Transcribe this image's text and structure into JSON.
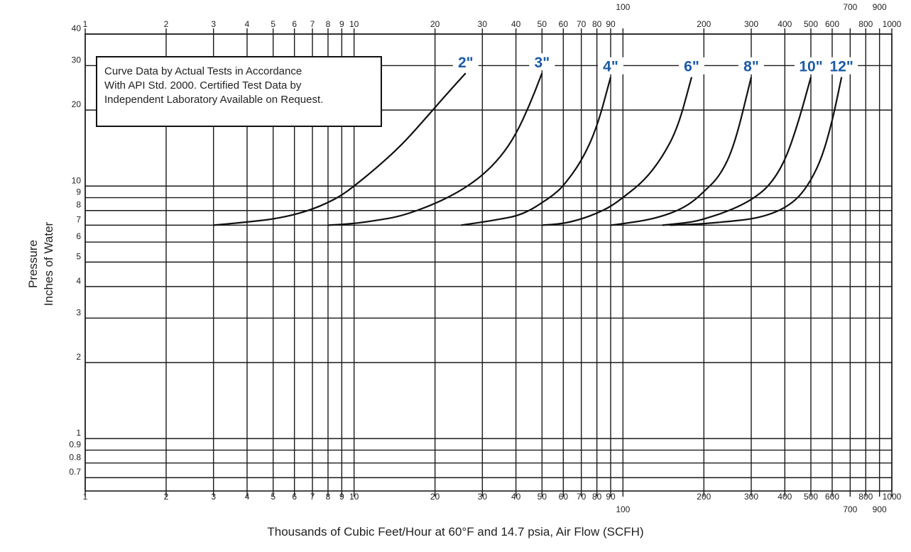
{
  "chart_data": {
    "type": "line",
    "title": "",
    "xlabel": "Thousands of Cubic Feet/Hour at 60°F and 14.7 psia, Air Flow (SCFH)",
    "ylabel": [
      "Pressure",
      "Inches of Water"
    ],
    "xscale": "log",
    "yscale": "log",
    "xlim": [
      1,
      1000
    ],
    "ylim": [
      0.62,
      40
    ],
    "grid": true,
    "legend": "none",
    "x_ticks": [
      {
        "value": 1,
        "label": "1"
      },
      {
        "value": 2,
        "label": "2"
      },
      {
        "value": 3,
        "label": "3"
      },
      {
        "value": 4,
        "label": "4"
      },
      {
        "value": 5,
        "label": "5"
      },
      {
        "value": 6,
        "label": "6"
      },
      {
        "value": 7,
        "label": "7"
      },
      {
        "value": 8,
        "label": "8"
      },
      {
        "value": 9,
        "label": "9"
      },
      {
        "value": 10,
        "label": "10"
      },
      {
        "value": 20,
        "label": "20"
      },
      {
        "value": 30,
        "label": "30"
      },
      {
        "value": 40,
        "label": "40"
      },
      {
        "value": 50,
        "label": "50"
      },
      {
        "value": 60,
        "label": "60"
      },
      {
        "value": 70,
        "label": "70"
      },
      {
        "value": 80,
        "label": "80"
      },
      {
        "value": 90,
        "label": "90"
      },
      {
        "value": 100,
        "label": "100"
      },
      {
        "value": 200,
        "label": "200"
      },
      {
        "value": 300,
        "label": "300"
      },
      {
        "value": 400,
        "label": "400"
      },
      {
        "value": 500,
        "label": "500"
      },
      {
        "value": 600,
        "label": "600"
      },
      {
        "value": 700,
        "label": "700"
      },
      {
        "value": 800,
        "label": "800"
      },
      {
        "value": 900,
        "label": "900"
      },
      {
        "value": 1000,
        "label": "1000"
      }
    ],
    "y_ticks": [
      {
        "value": 0.7,
        "label": "0.7"
      },
      {
        "value": 0.8,
        "label": "0.8"
      },
      {
        "value": 0.9,
        "label": "0.9"
      },
      {
        "value": 1,
        "label": "1"
      },
      {
        "value": 2,
        "label": "2"
      },
      {
        "value": 3,
        "label": "3"
      },
      {
        "value": 4,
        "label": "4"
      },
      {
        "value": 5,
        "label": "5"
      },
      {
        "value": 6,
        "label": "6"
      },
      {
        "value": 7,
        "label": "7"
      },
      {
        "value": 8,
        "label": "8"
      },
      {
        "value": 9,
        "label": "9"
      },
      {
        "value": 10,
        "label": "10"
      },
      {
        "value": 20,
        "label": "20"
      },
      {
        "value": 30,
        "label": "30"
      },
      {
        "value": 40,
        "label": "40"
      }
    ],
    "series": [
      {
        "name": "2\"",
        "x": [
          3,
          4,
          5,
          6,
          7,
          8,
          9,
          10,
          12,
          15,
          18,
          22,
          26
        ],
        "y": [
          7.0,
          7.2,
          7.4,
          7.7,
          8.1,
          8.6,
          9.2,
          10.0,
          11.7,
          14.5,
          18.0,
          23.0,
          28.0
        ]
      },
      {
        "name": "3\"",
        "x": [
          8,
          10,
          12,
          15,
          20,
          25,
          30,
          35,
          40,
          45,
          50
        ],
        "y": [
          7.0,
          7.1,
          7.3,
          7.6,
          8.5,
          9.6,
          11.0,
          13.0,
          16.0,
          21.0,
          28.0
        ]
      },
      {
        "name": "4\"",
        "x": [
          25,
          30,
          35,
          40,
          45,
          50,
          55,
          60,
          70,
          80,
          90
        ],
        "y": [
          7.0,
          7.2,
          7.4,
          7.6,
          8.0,
          8.6,
          9.2,
          10.0,
          12.5,
          17.0,
          27.0
        ]
      },
      {
        "name": "6\"",
        "x": [
          50,
          60,
          70,
          80,
          90,
          100,
          120,
          140,
          160,
          180
        ],
        "y": [
          7.0,
          7.1,
          7.4,
          7.8,
          8.3,
          9.0,
          10.5,
          13.0,
          17.0,
          27.0
        ]
      },
      {
        "name": "8\"",
        "x": [
          90,
          100,
          120,
          140,
          160,
          180,
          200,
          230,
          260,
          300
        ],
        "y": [
          7.0,
          7.1,
          7.3,
          7.6,
          8.0,
          8.6,
          9.5,
          11.0,
          14.5,
          27.0
        ]
      },
      {
        "name": "10\"",
        "x": [
          140,
          160,
          180,
          200,
          250,
          300,
          350,
          400,
          450,
          500
        ],
        "y": [
          7.0,
          7.1,
          7.2,
          7.4,
          8.0,
          8.8,
          10.0,
          12.5,
          18.0,
          27.0
        ]
      },
      {
        "name": "12\"",
        "x": [
          150,
          180,
          200,
          250,
          300,
          350,
          400,
          450,
          500,
          550,
          600,
          650
        ],
        "y": [
          7.0,
          7.05,
          7.1,
          7.25,
          7.4,
          7.7,
          8.2,
          9.0,
          10.5,
          13.0,
          18.0,
          27.0
        ]
      }
    ],
    "annotation": [
      "Curve Data by Actual Tests in Accordance",
      "With API Std. 2000. Certified Test Data by",
      "Independent Laboratory Available on Request."
    ],
    "colors": {
      "grid": "#1a1a1a",
      "curve": "#111111",
      "curve_label": "#1b5aa6"
    }
  }
}
